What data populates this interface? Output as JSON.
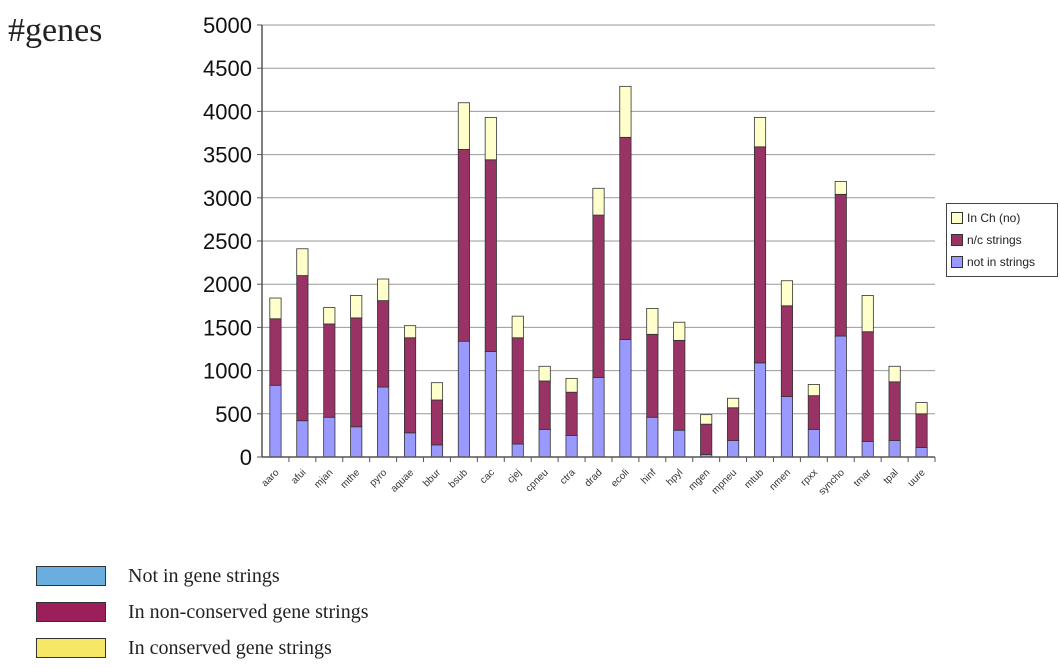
{
  "y_axis_title": "#genes",
  "chart_data": {
    "type": "bar",
    "stacked": true,
    "categories": [
      "aaro",
      "afui",
      "mjan",
      "mthe",
      "pyro",
      "aquae",
      "bbur",
      "bsub",
      "cac",
      "cjej",
      "cpneu",
      "ctra",
      "drad",
      "ecoli",
      "hinf",
      "hpyl",
      "mgen",
      "mpneu",
      "mtub",
      "nmen",
      "rpxx",
      "syncho",
      "tmar",
      "tpal",
      "uure"
    ],
    "series": [
      {
        "name": "not in strings",
        "color": "#9999ff",
        "values": [
          830,
          420,
          460,
          350,
          810,
          280,
          140,
          1340,
          1220,
          150,
          320,
          250,
          920,
          1360,
          460,
          310,
          30,
          190,
          1090,
          700,
          320,
          1400,
          180,
          190,
          110
        ]
      },
      {
        "name": "n/c strings",
        "color": "#993366",
        "values": [
          770,
          1680,
          1080,
          1260,
          1000,
          1100,
          520,
          2220,
          2220,
          1230,
          560,
          500,
          1880,
          2340,
          960,
          1040,
          350,
          380,
          2500,
          1050,
          390,
          1640,
          1270,
          680,
          390
        ]
      },
      {
        "name": "In Ch (no)",
        "color": "#ffffcc",
        "values": [
          240,
          310,
          190,
          260,
          250,
          140,
          200,
          540,
          490,
          250,
          170,
          160,
          310,
          590,
          300,
          210,
          110,
          110,
          340,
          290,
          130,
          150,
          420,
          180,
          130
        ]
      }
    ],
    "ylim": [
      0,
      5000
    ],
    "yticks": [
      0,
      500,
      1000,
      1500,
      2000,
      2500,
      3000,
      3500,
      4000,
      4500,
      5000
    ],
    "grid": true,
    "legend": "right"
  },
  "legend_small": [
    {
      "label": "In Ch (no)",
      "color": "#ffffcc"
    },
    {
      "label": "n/c strings",
      "color": "#993366"
    },
    {
      "label": "not in strings",
      "color": "#9999ff"
    }
  ],
  "legend_big": [
    {
      "label": "Not in gene strings",
      "color": "#6aaee0"
    },
    {
      "label": "In non-conserved gene strings",
      "color": "#9c1f5c"
    },
    {
      "label": "In conserved gene strings",
      "color": "#f6e866"
    }
  ]
}
